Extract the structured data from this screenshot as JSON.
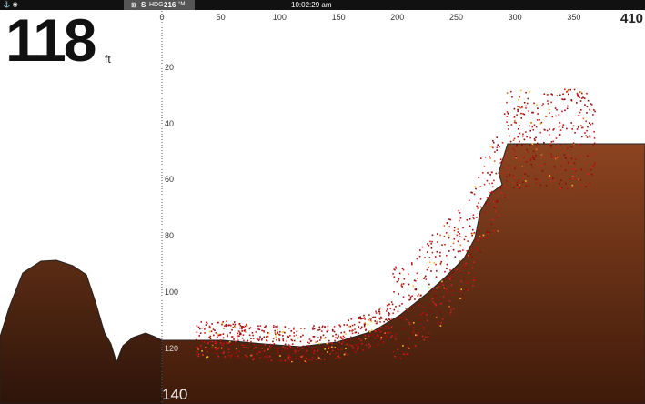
{
  "status_bar": {
    "heading_prefix": "S",
    "heading_label": "HDG",
    "heading_value": "216",
    "heading_unit": "°M",
    "time": "10:02:29 am"
  },
  "depth_readout": {
    "value": "118",
    "unit": "ft"
  },
  "range_scale": {
    "labels": [
      "0",
      "50",
      "100",
      "150",
      "200",
      "250",
      "300",
      "350"
    ],
    "max": "410"
  },
  "depth_scale": {
    "labels": [
      "20",
      "40",
      "60",
      "80",
      "100",
      "120"
    ],
    "current": "140"
  }
}
